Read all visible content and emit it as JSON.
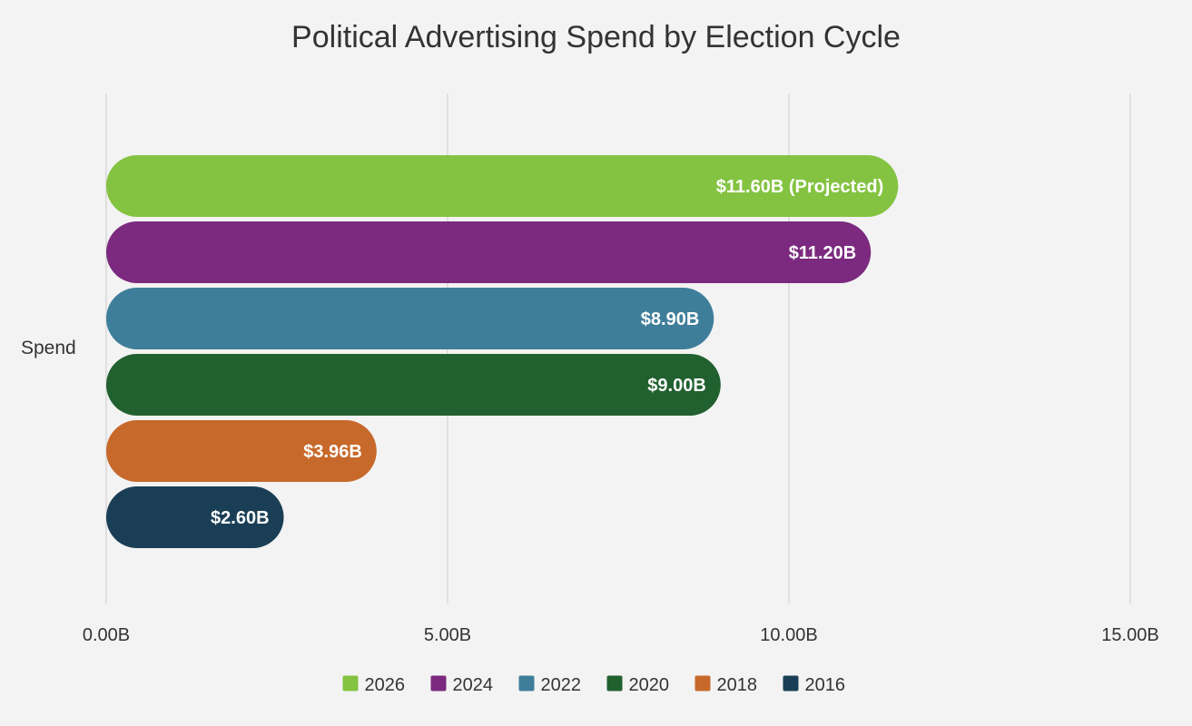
{
  "chart_data": {
    "type": "bar",
    "orientation": "horizontal",
    "title": "Political Advertising Spend by Election Cycle",
    "category_label": "Spend",
    "xlim": [
      0,
      15
    ],
    "x_ticks": [
      0,
      5,
      10,
      15
    ],
    "x_tick_labels": [
      "0.00B",
      "5.00B",
      "10.00B",
      "15.00B"
    ],
    "grid": true,
    "legend_position": "bottom",
    "series": [
      {
        "name": "2026",
        "value": 11.6,
        "label": "$11.60B (Projected)",
        "color": "#84c341"
      },
      {
        "name": "2024",
        "value": 11.2,
        "label": "$11.20B",
        "color": "#7b2a7f"
      },
      {
        "name": "2022",
        "value": 8.9,
        "label": "$8.90B",
        "color": "#3f7e9a"
      },
      {
        "name": "2020",
        "value": 9.0,
        "label": "$9.00B",
        "color": "#21602f"
      },
      {
        "name": "2018",
        "value": 3.96,
        "label": "$3.96B",
        "color": "#c7692b"
      },
      {
        "name": "2016",
        "value": 2.6,
        "label": "$2.60B",
        "color": "#1a3e55"
      }
    ]
  }
}
